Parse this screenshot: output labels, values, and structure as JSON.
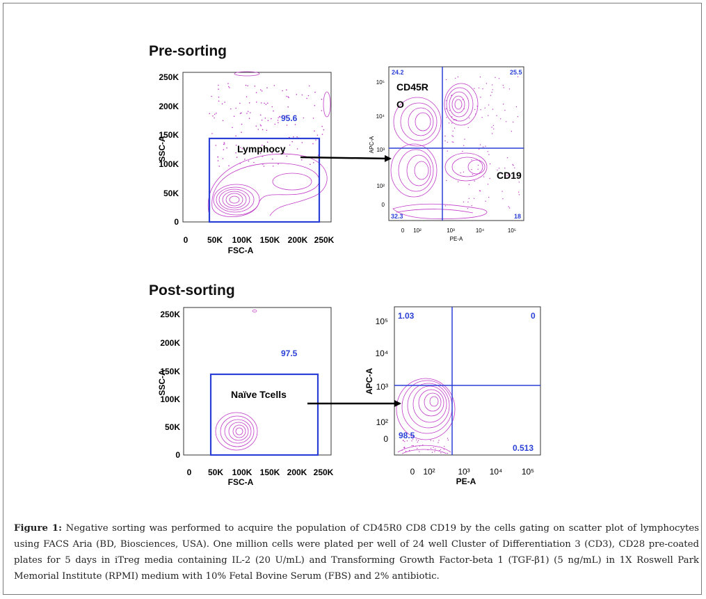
{
  "pre": {
    "title": "Pre-sorting",
    "scatter": {
      "y_ticks": [
        "250K",
        "200K",
        "150K",
        "100K",
        "50K",
        "0"
      ],
      "x_ticks": [
        "0",
        "50K",
        "100K",
        "150K",
        "200K",
        "250K"
      ],
      "ylabel": "SSC-A",
      "xlabel": "FSC-A",
      "gate_value": "95.6",
      "gate_label": "Lymphocy"
    },
    "quad": {
      "y_ticks": [
        "10⁵",
        "10⁴",
        "10³",
        "10²",
        "0"
      ],
      "x_ticks": [
        "0",
        "10²",
        "10³",
        "10⁴",
        "10⁵"
      ],
      "ylabel": "APC-A",
      "xlabel": "PE-A",
      "q_ul": "24.2",
      "q_ur": "25.5",
      "q_ll": "32.3",
      "q_lr": "18",
      "label_1a": "CD45R",
      "label_1b": "O",
      "label_2": "CD19"
    }
  },
  "post": {
    "title": "Post-sorting",
    "scatter": {
      "y_ticks": [
        "250K",
        "200K",
        "150K",
        "100K",
        "50K",
        "0"
      ],
      "x_ticks": [
        "0",
        "50K",
        "100K",
        "150K",
        "200K",
        "250K"
      ],
      "ylabel": "SSC-A",
      "xlabel": "FSC-A",
      "gate_value": "97.5",
      "gate_label": "Naïve Tcells"
    },
    "quad": {
      "y_ticks": [
        "10⁵",
        "10⁴",
        "10³",
        "10²",
        "0"
      ],
      "x_ticks": [
        "0",
        "10²",
        "10³",
        "10⁴",
        "10⁵"
      ],
      "ylabel": "APC-A",
      "xlabel": "PE-A",
      "q_ul": "1.03",
      "q_ur": "0",
      "q_ll": "98.5",
      "q_lr": "0.513"
    }
  },
  "caption": {
    "label": "Figure 1:",
    "text": "Negative sorting was performed to acquire the population of CD45R0 CD8 CD19 by the cells gating on scatter plot of lymphocytes using FACS Aria (BD, Biosciences, USA). One million cells were plated per well of 24 well Cluster of Differentiation 3 (CD3), CD28 pre-coated plates for 5 days in iTreg media containing IL-2 (20 U/mL) and Transforming Growth Factor-beta 1 (TGF-β1) (5 ng/mL) in 1X Roswell Park Memorial Institute (RPMI) medium with 10% Fetal Bovine Serum (FBS) and 2% antibiotic."
  },
  "colors": {
    "gate": "#2a3fd6",
    "contour": "#c03ac8",
    "quad_value": "#2a3fd6"
  }
}
